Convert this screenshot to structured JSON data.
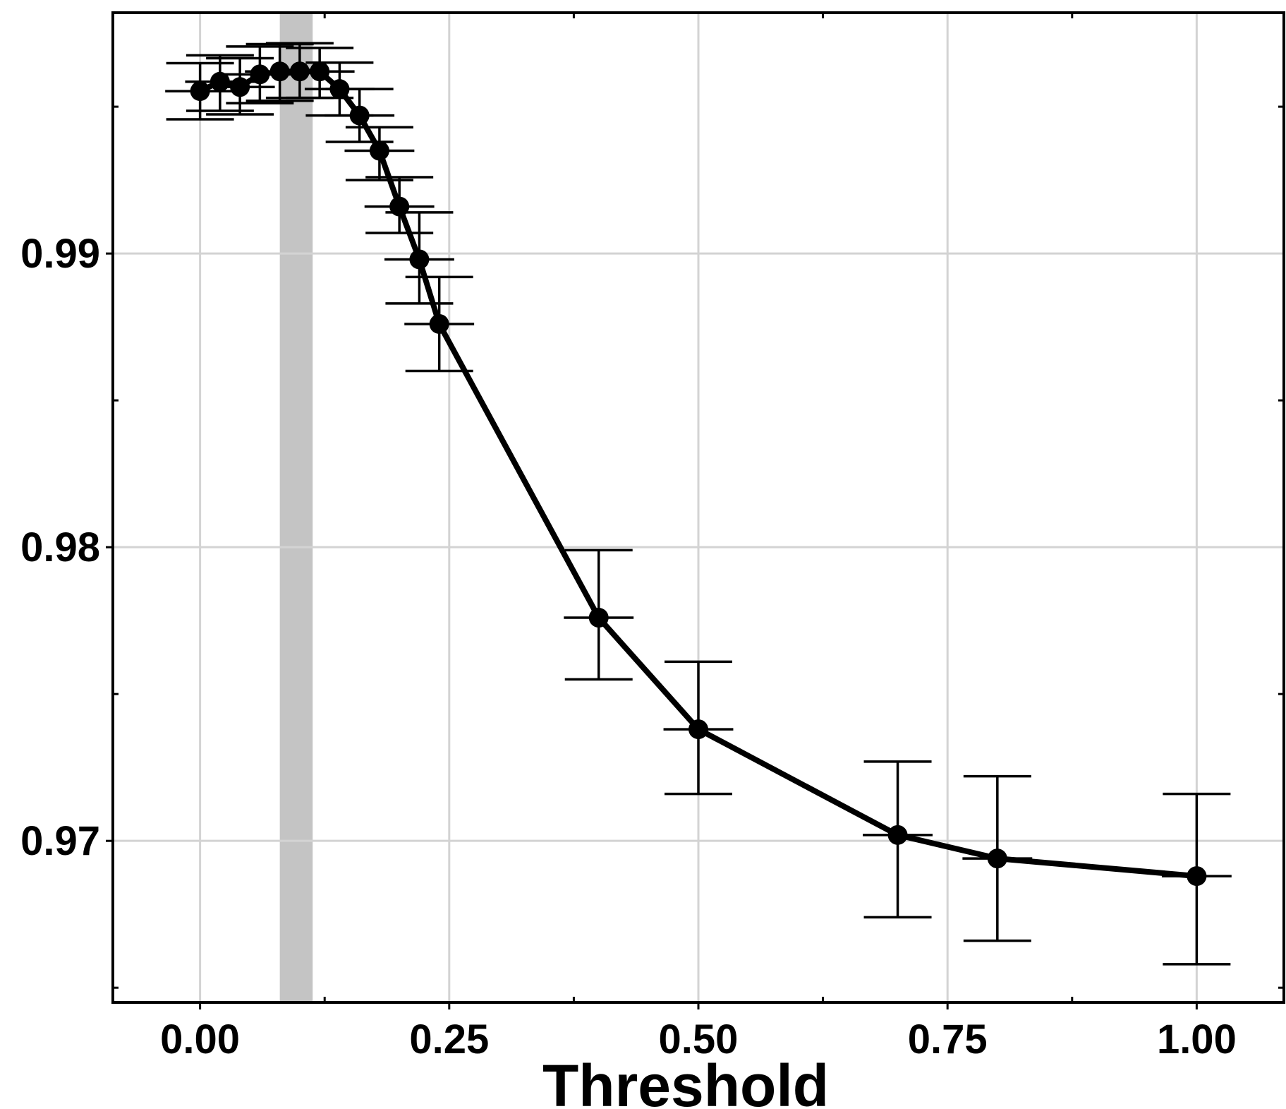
{
  "chart_data": {
    "type": "line",
    "title": "",
    "xlabel": "Threshold",
    "ylabel": "",
    "xlim": [
      -0.0875,
      1.0875
    ],
    "ylim": [
      0.9645,
      0.9982
    ],
    "x_ticks": [
      0.0,
      0.25,
      0.5,
      0.75,
      1.0
    ],
    "x_tick_labels": [
      "0.00",
      "0.25",
      "0.50",
      "0.75",
      "1.00"
    ],
    "y_ticks": [
      0.97,
      0.98,
      0.99
    ],
    "y_tick_labels": [
      "0.97",
      "0.98",
      "0.99"
    ],
    "grid": true,
    "highlight_band": {
      "x_start": 0.08,
      "x_end": 0.113,
      "color": "#c4c4c4"
    },
    "series": [
      {
        "points": [
          {
            "x": 0.0,
            "y": 0.99553,
            "y_low": 0.99457,
            "y_high": 0.99648,
            "x_low": -0.035,
            "x_high": 0.035
          },
          {
            "x": 0.02,
            "y": 0.99585,
            "y_low": 0.99486,
            "y_high": 0.99675,
            "x_low": -0.015,
            "x_high": 0.055
          },
          {
            "x": 0.04,
            "y": 0.99567,
            "y_low": 0.99474,
            "y_high": 0.99665,
            "x_low": 0.005,
            "x_high": 0.075
          },
          {
            "x": 0.06,
            "y": 0.9961,
            "y_low": 0.99512,
            "y_high": 0.99705,
            "x_low": 0.025,
            "x_high": 0.095
          },
          {
            "x": 0.08,
            "y": 0.9962,
            "y_low": 0.9952,
            "y_high": 0.99713,
            "x_low": 0.045,
            "x_high": 0.115
          },
          {
            "x": 0.1,
            "y": 0.9962,
            "y_low": 0.9953,
            "y_high": 0.99716,
            "x_low": 0.065,
            "x_high": 0.135
          },
          {
            "x": 0.12,
            "y": 0.9962,
            "y_low": 0.9953,
            "y_high": 0.997,
            "x_low": 0.085,
            "x_high": 0.155
          },
          {
            "x": 0.14,
            "y": 0.9956,
            "y_low": 0.9947,
            "y_high": 0.9965,
            "x_low": 0.105,
            "x_high": 0.175
          },
          {
            "x": 0.16,
            "y": 0.9947,
            "y_low": 0.9938,
            "y_high": 0.9956,
            "x_low": 0.125,
            "x_high": 0.195
          },
          {
            "x": 0.18,
            "y": 0.9935,
            "y_low": 0.9925,
            "y_high": 0.9943,
            "x_low": 0.145,
            "x_high": 0.215
          },
          {
            "x": 0.2,
            "y": 0.9916,
            "y_low": 0.9907,
            "y_high": 0.9926,
            "x_low": 0.165,
            "x_high": 0.235
          },
          {
            "x": 0.22,
            "y": 0.9898,
            "y_low": 0.9883,
            "y_high": 0.9914,
            "x_low": 0.185,
            "x_high": 0.255
          },
          {
            "x": 0.24,
            "y": 0.9876,
            "y_low": 0.986,
            "y_high": 0.9892,
            "x_low": 0.205,
            "x_high": 0.275
          },
          {
            "x": 0.4,
            "y": 0.9776,
            "y_low": 0.9755,
            "y_high": 0.9799,
            "x_low": 0.365,
            "x_high": 0.435
          },
          {
            "x": 0.5,
            "y": 0.9738,
            "y_low": 0.9716,
            "y_high": 0.9761,
            "x_low": 0.465,
            "x_high": 0.535
          },
          {
            "x": 0.7,
            "y": 0.9702,
            "y_low": 0.9674,
            "y_high": 0.9727,
            "x_low": 0.665,
            "x_high": 0.735
          },
          {
            "x": 0.8,
            "y": 0.9694,
            "y_low": 0.9666,
            "y_high": 0.9722,
            "x_low": 0.765,
            "x_high": 0.835
          },
          {
            "x": 1.0,
            "y": 0.9688,
            "y_low": 0.9658,
            "y_high": 0.9716,
            "x_low": 0.965,
            "x_high": 1.035
          }
        ]
      }
    ]
  }
}
